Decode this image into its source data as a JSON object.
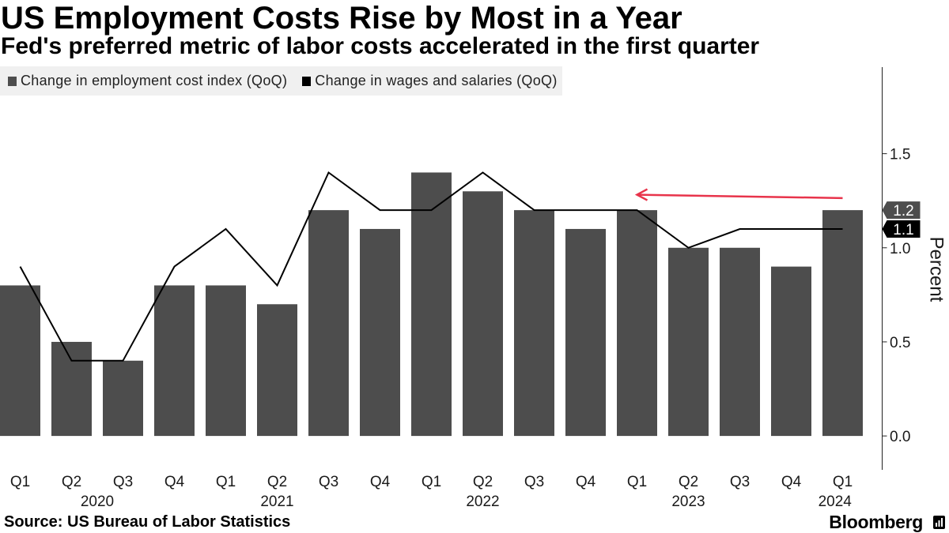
{
  "chart_data": {
    "type": "bar",
    "title": "US Employment Costs Rise by Most in a Year",
    "subtitle": "Fed's preferred metric of labor costs accelerated in the first quarter",
    "categories": [
      "Q1",
      "Q2",
      "Q3",
      "Q4",
      "Q1",
      "Q2",
      "Q3",
      "Q4",
      "Q1",
      "Q2",
      "Q3",
      "Q4",
      "Q1",
      "Q2",
      "Q3",
      "Q4",
      "Q1"
    ],
    "category_groups": [
      {
        "label": "2020",
        "count": 4
      },
      {
        "label": "2021",
        "count": 4
      },
      {
        "label": "2022",
        "count": 4
      },
      {
        "label": "2023",
        "count": 4
      },
      {
        "label": "2024",
        "count": 1
      }
    ],
    "series": [
      {
        "name": "Change in employment cost index (QoQ)",
        "type": "bar",
        "color": "#4d4d4d",
        "values": [
          0.8,
          0.5,
          0.4,
          0.8,
          0.8,
          0.7,
          1.2,
          1.1,
          1.4,
          1.3,
          1.2,
          1.1,
          1.2,
          1.0,
          1.0,
          0.9,
          1.2
        ],
        "end_label": "1.2"
      },
      {
        "name": "Change in wages and salaries (QoQ)",
        "type": "line",
        "color": "#000000",
        "values": [
          0.9,
          0.4,
          0.4,
          0.9,
          1.1,
          0.8,
          1.4,
          1.2,
          1.2,
          1.4,
          1.2,
          1.2,
          1.2,
          1.0,
          1.1,
          1.1,
          1.1
        ],
        "end_label": "1.1"
      }
    ],
    "xlabel": "",
    "ylabel": "Percent",
    "y_ticks": [
      "0.0",
      "0.5",
      "1.0",
      "1.5"
    ],
    "ylim": [
      -0.18,
      1.96
    ],
    "y_axis_side": "right",
    "grid": false,
    "legend": "top-left",
    "annotations": [
      {
        "type": "arrow",
        "from_index": 16,
        "to_index": 12,
        "color": "#e8344b"
      }
    ]
  },
  "source": "Source: US Bureau of Labor Statistics",
  "brand": {
    "name": "Bloomberg"
  },
  "colors": {
    "background": "#ffffff",
    "legend_background": "#f0f0f0",
    "text": "#000000"
  }
}
